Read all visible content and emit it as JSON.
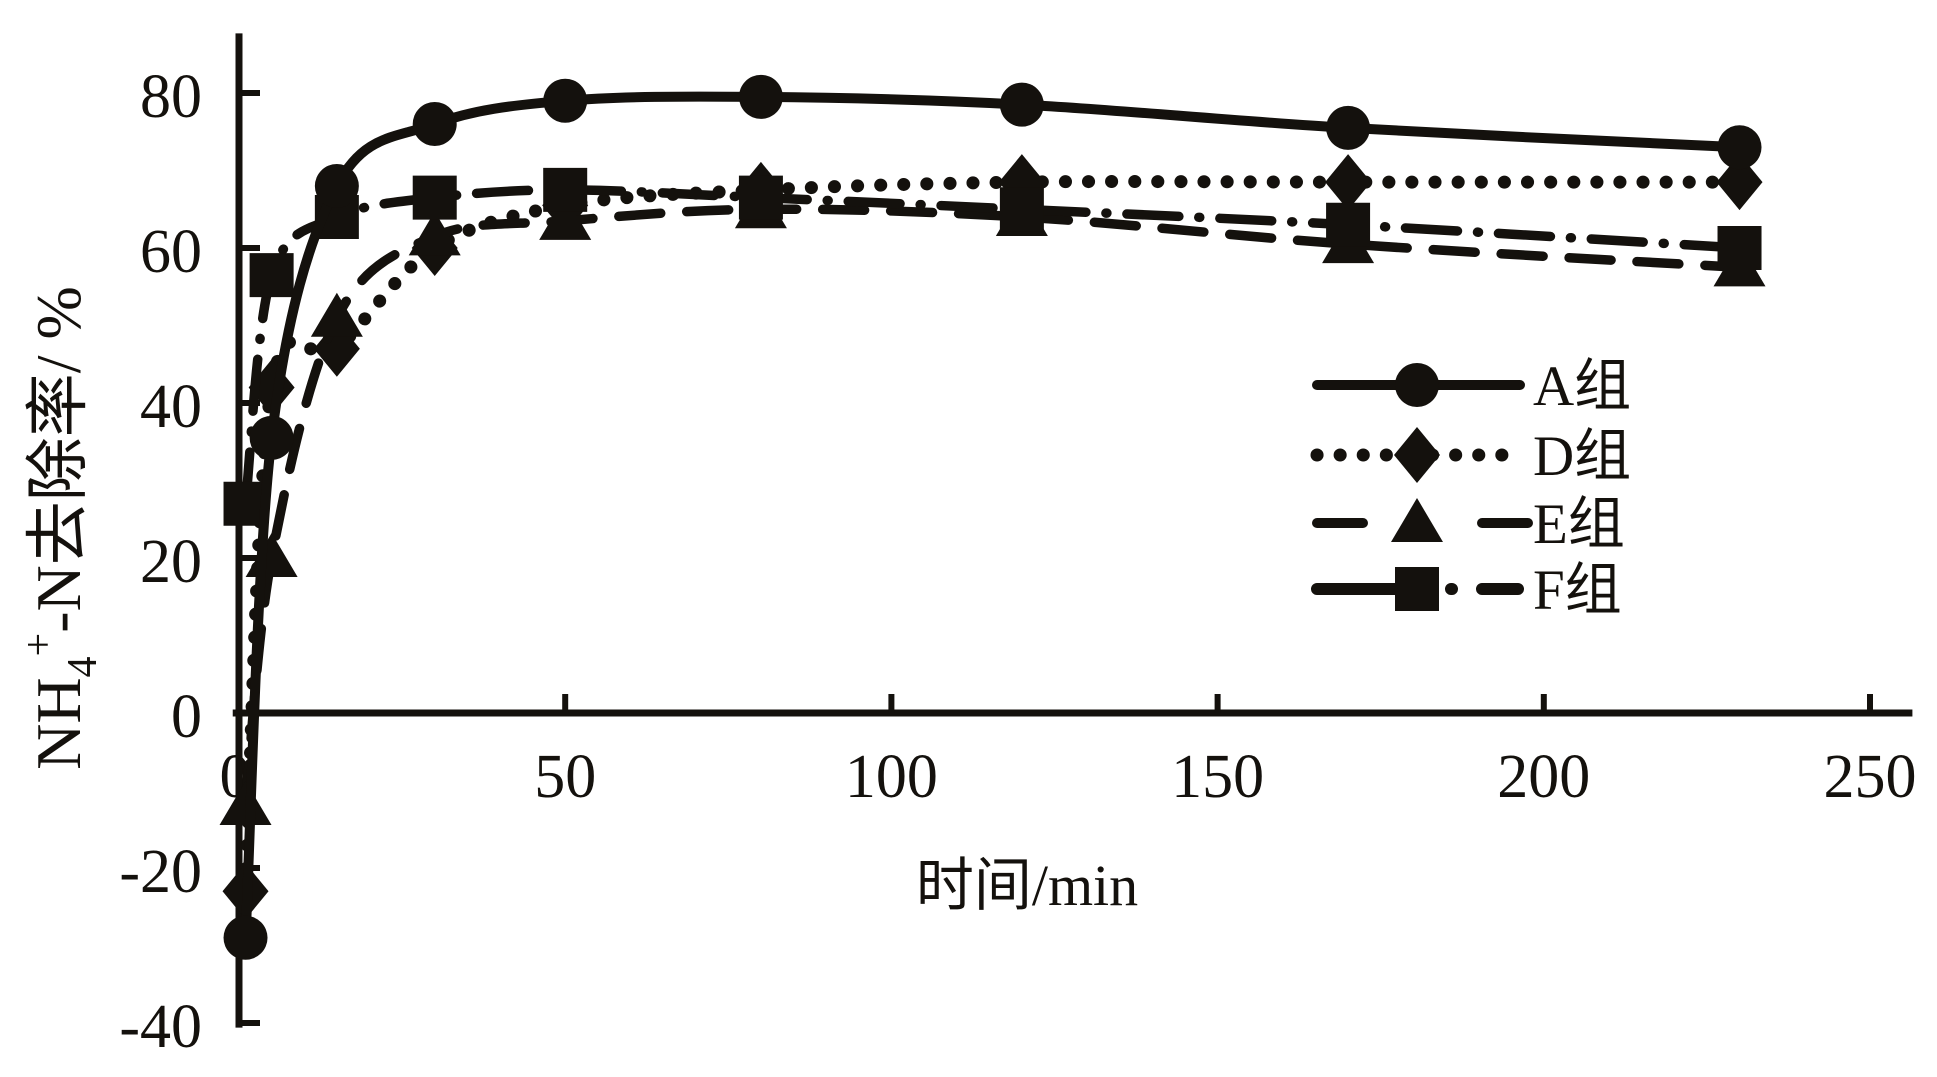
{
  "figure": {
    "background": "#ffffff",
    "ink_color": "#14110d"
  },
  "chart_data": {
    "type": "line",
    "title": "",
    "xlabel": "时间/min",
    "ylabel": "NH4+-N去除率/%",
    "ylabel_parts": [
      {
        "text": "NH"
      },
      {
        "text": "4",
        "style": "sub"
      },
      {
        "text": "+",
        "style": "sup"
      },
      {
        "text": "-N去除率/ %"
      }
    ],
    "x": [
      1,
      5,
      15,
      30,
      50,
      80,
      120,
      170,
      230
    ],
    "series": [
      {
        "name": "A组",
        "marker": "circle",
        "line": "solid",
        "values": [
          -29,
          35.5,
          68,
          76,
          79,
          79.5,
          78.5,
          75.5,
          73
        ]
      },
      {
        "name": "D组",
        "marker": "diamond",
        "line": "dotted",
        "values": [
          -23,
          42,
          47,
          60,
          65.5,
          67.5,
          68.5,
          68.5,
          68.5
        ]
      },
      {
        "name": "E组",
        "marker": "triangle",
        "line": "dashed",
        "values": [
          -12,
          20,
          51,
          61.5,
          63.5,
          65,
          64,
          60.5,
          57.5
        ]
      },
      {
        "name": "F组",
        "marker": "square",
        "line": "dashdot",
        "values": [
          27,
          56.5,
          64,
          66.5,
          67.5,
          66.5,
          65,
          63,
          60
        ]
      }
    ],
    "xticks": [
      0,
      50,
      100,
      150,
      200,
      250
    ],
    "yticks": [
      80,
      60,
      40,
      20,
      0,
      -20,
      -40
    ],
    "xlim": [
      -0.5,
      256.5
    ],
    "ylim": [
      -40.6,
      87.7
    ],
    "grid": false,
    "legend_position": "right-middle"
  }
}
